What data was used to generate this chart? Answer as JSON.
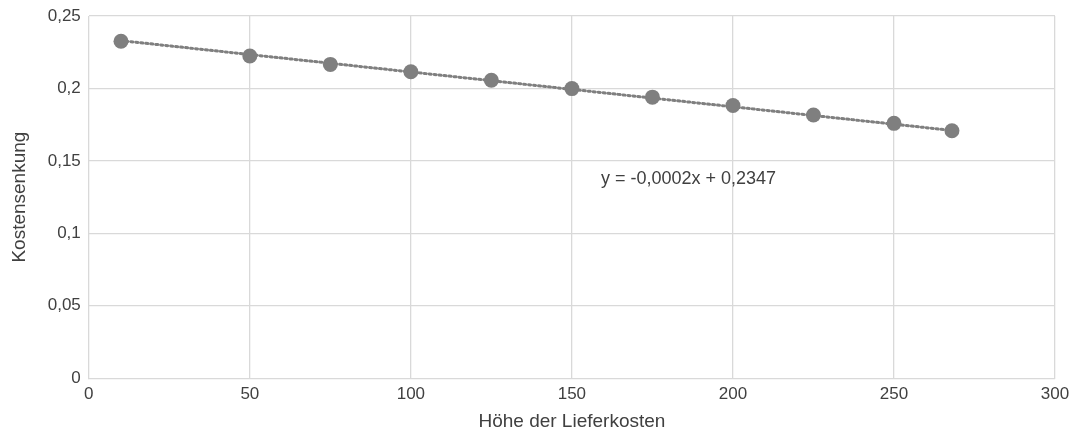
{
  "chart_data": {
    "type": "scatter",
    "xlabel": "Höhe der Lieferkosten",
    "ylabel": "Kostensenkung",
    "x": [
      10,
      50,
      75,
      100,
      125,
      150,
      175,
      200,
      225,
      250,
      268
    ],
    "series": [
      {
        "type": "scatter",
        "color": "#7f7f7f",
        "values": [
          0.2326,
          0.2224,
          0.2166,
          0.2115,
          0.2057,
          0.1999,
          0.194,
          0.1882,
          0.1817,
          0.1759,
          0.1708
        ]
      },
      {
        "type": "line",
        "color": "#7f7f7f",
        "line_style": "dotted",
        "marker": "none",
        "x": [
          10,
          268
        ],
        "values": [
          0.233,
          0.171
        ]
      }
    ],
    "xlim": [
      0,
      300
    ],
    "xticks": [
      0,
      50,
      100,
      150,
      200,
      250,
      300
    ],
    "ylim": [
      0,
      0.25
    ],
    "yticks": [
      0,
      {
        "value": 0.05,
        "label": "0,05"
      },
      {
        "value": 0.1,
        "label": "0,1"
      },
      {
        "value": 0.15,
        "label": "0,15"
      },
      {
        "value": 0.2,
        "label": "0,2"
      },
      {
        "value": 0.25,
        "label": "0,25"
      }
    ],
    "grid": true,
    "legend": false,
    "marker": "circle",
    "annotations": [
      "y = -0,0002x + 0,2347"
    ]
  }
}
